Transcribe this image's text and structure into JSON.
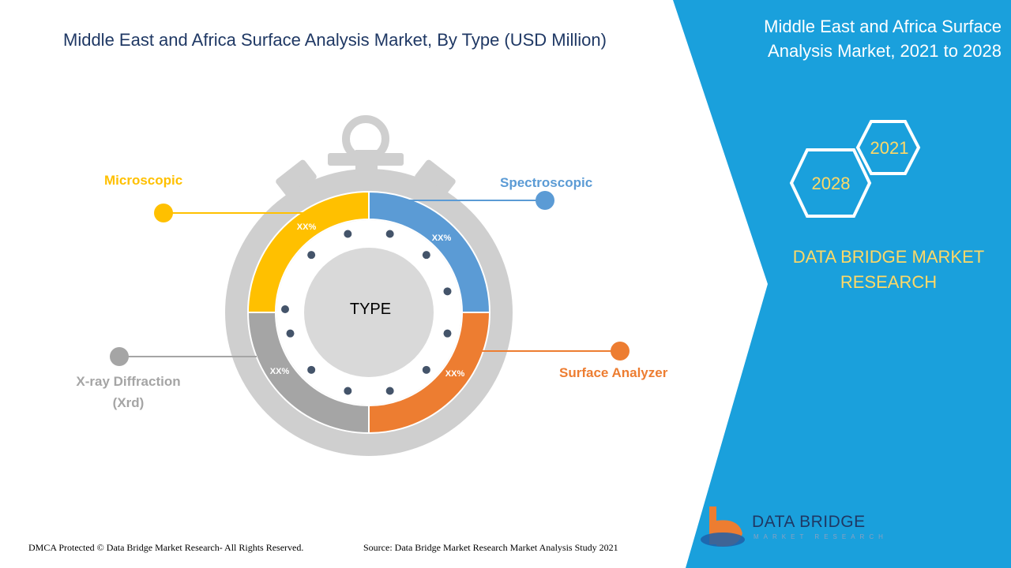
{
  "header": {
    "title": "Middle East and Africa Surface Analysis Market, By Type (USD Million)"
  },
  "side_panel": {
    "title": "Middle East and Africa Surface Analysis Market, 2021 to 2028",
    "year_start": "2021",
    "year_end": "2028",
    "company": "DATA BRIDGE MARKET RESEARCH",
    "background_color": "#1aa0dc",
    "accent_color": "#ffd966"
  },
  "chart_data": {
    "type": "pie",
    "center_label": "TYPE",
    "segments": [
      {
        "name": "Spectroscopic",
        "label": "XX%",
        "color": "#5b9bd5"
      },
      {
        "name": "Surface Analyzer",
        "label": "XX%",
        "color": "#ed7d31"
      },
      {
        "name": "X-ray Diffraction (Xrd)",
        "label": "XX%",
        "color": "#a5a5a5"
      },
      {
        "name": "Microscopic",
        "label": "XX%",
        "color": "#ffc000"
      }
    ]
  },
  "legend": {
    "microscopic": "Microscopic",
    "spectroscopic": "Spectroscopic",
    "surface_analyzer": "Surface Analyzer",
    "xray_line1": "X-ray Diffraction",
    "xray_line2": "(Xrd)"
  },
  "footer": {
    "copyright": "DMCA Protected © Data Bridge Market Research- All Rights Reserved.",
    "source": "Source: Data Bridge Market Research Market Analysis Study 2021"
  },
  "logo": {
    "text": "DATA BRIDGE",
    "subtext": "MARKET RESEARCH"
  }
}
